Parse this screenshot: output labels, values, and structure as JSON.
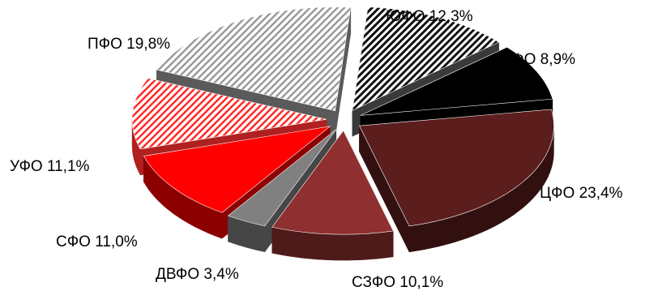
{
  "chart_data": {
    "type": "pie",
    "style": "3d-exploded",
    "categories": [
      "ЮФО",
      "СКФО",
      "ЦФО",
      "СЗФО",
      "ДВФО",
      "СФО",
      "УФО",
      "ПФО"
    ],
    "values": [
      12.3,
      8.9,
      23.4,
      10.1,
      3.4,
      11.0,
      11.1,
      19.8
    ],
    "value_labels": [
      "12,3%",
      "8,9%",
      "23,4%",
      "10,1%",
      "3,4%",
      "11,0%",
      "11,1%",
      "19,8%"
    ],
    "unit": "%",
    "legend": "none",
    "slices": [
      {
        "name": "ЮФО",
        "fill": "stripes-black-white"
      },
      {
        "name": "СКФО",
        "fill": "#000000"
      },
      {
        "name": "ЦФО",
        "fill": "#5c1d1d"
      },
      {
        "name": "СЗФО",
        "fill": "#8f2f2f"
      },
      {
        "name": "ДВФО",
        "fill": "#808080"
      },
      {
        "name": "СФО",
        "fill": "#ff0000"
      },
      {
        "name": "УФО",
        "fill": "stripes-red-white"
      },
      {
        "name": "ПФО",
        "fill": "stripes-grey-white"
      }
    ]
  }
}
